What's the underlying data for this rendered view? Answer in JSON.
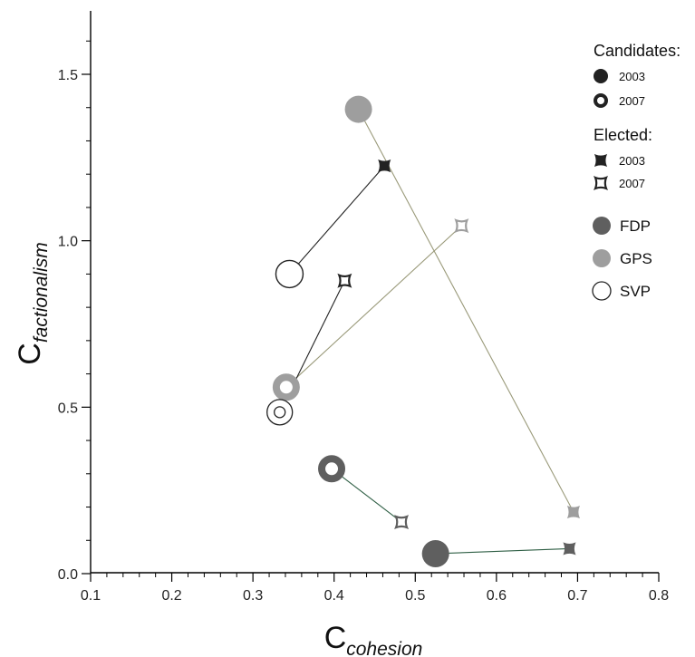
{
  "chart_data": {
    "type": "scatter",
    "title": "",
    "xlabel": {
      "main": "C",
      "sub": "cohesion"
    },
    "ylabel": {
      "main": "C",
      "sub": "factionalism"
    },
    "xlim": [
      0.1,
      0.8
    ],
    "ylim": [
      0.0,
      1.7
    ],
    "xticks": [
      "0.1",
      "0.2",
      "0.3",
      "0.4",
      "0.5",
      "0.6",
      "0.7",
      "0.8"
    ],
    "xtick_values": [
      0.1,
      0.2,
      0.3,
      0.4,
      0.5,
      0.6,
      0.7,
      0.8
    ],
    "yticks": [
      "0.0",
      "0.5",
      "1.0",
      "1.5"
    ],
    "ytick_values": [
      0.0,
      0.5,
      1.0,
      1.5
    ],
    "grid": false,
    "legend": {
      "position": "top-right",
      "candidates_title": "Candidates:",
      "elected_title": "Elected:",
      "candidates": [
        {
          "label": "2003",
          "marker": "filled-circle"
        },
        {
          "label": "2007",
          "marker": "ring"
        }
      ],
      "elected": [
        {
          "label": "2003",
          "marker": "filled-square"
        },
        {
          "label": "2007",
          "marker": "open-square"
        }
      ],
      "parties": [
        {
          "label": "FDP",
          "color": "#5f5f5f",
          "style": "filled"
        },
        {
          "label": "GPS",
          "color": "#9e9e9e",
          "style": "filled"
        },
        {
          "label": "SVP",
          "color": "#222222",
          "style": "open"
        }
      ]
    },
    "series": [
      {
        "name": "FDP",
        "color": "#5f5f5f",
        "points": [
          {
            "group": "candidates",
            "year": "2003",
            "x": 0.525,
            "y": 0.06
          },
          {
            "group": "elected",
            "year": "2003",
            "x": 0.69,
            "y": 0.075
          },
          {
            "group": "candidates",
            "year": "2007",
            "x": 0.397,
            "y": 0.315
          },
          {
            "group": "elected",
            "year": "2007",
            "x": 0.483,
            "y": 0.155
          }
        ],
        "links": [
          [
            0,
            1
          ],
          [
            2,
            3
          ]
        ],
        "link_color": "#2f5f45"
      },
      {
        "name": "GPS",
        "color": "#9e9e9e",
        "points": [
          {
            "group": "candidates",
            "year": "2003",
            "x": 0.43,
            "y": 1.395
          },
          {
            "group": "elected",
            "year": "2003",
            "x": 0.695,
            "y": 0.185
          },
          {
            "group": "candidates",
            "year": "2007",
            "x": 0.341,
            "y": 0.56
          },
          {
            "group": "elected",
            "year": "2007",
            "x": 0.557,
            "y": 1.045
          }
        ],
        "links": [
          [
            0,
            1
          ],
          [
            2,
            3
          ]
        ],
        "link_color": "#9a9a7a"
      },
      {
        "name": "SVP",
        "color": "#222222",
        "points": [
          {
            "group": "candidates",
            "year": "2003",
            "x": 0.345,
            "y": 0.9
          },
          {
            "group": "elected",
            "year": "2003",
            "x": 0.462,
            "y": 1.225
          },
          {
            "group": "candidates",
            "year": "2007",
            "x": 0.333,
            "y": 0.485
          },
          {
            "group": "elected",
            "year": "2007",
            "x": 0.413,
            "y": 0.88
          }
        ],
        "links": [
          [
            0,
            1
          ],
          [
            2,
            3
          ]
        ],
        "link_color": "#222222"
      }
    ]
  }
}
